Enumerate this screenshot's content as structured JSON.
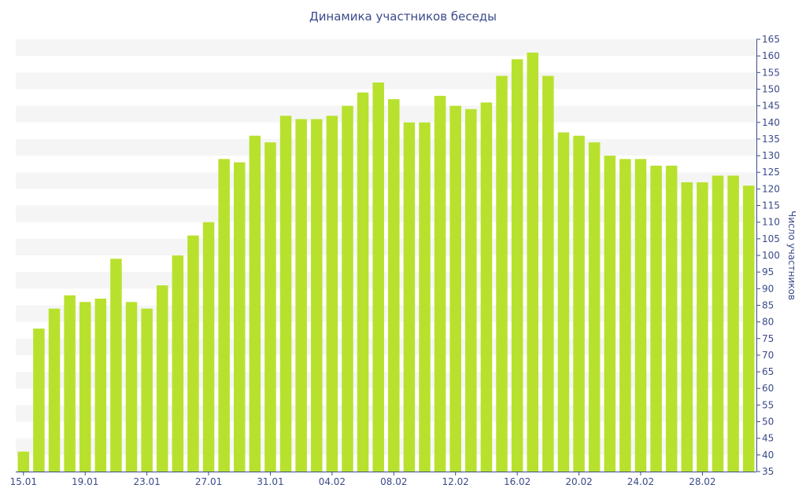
{
  "chart_data": {
    "type": "bar",
    "title": "Динамика участников беседы",
    "ylabel": "Число участников",
    "xlabel": "",
    "ylim": [
      35,
      165
    ],
    "ytick_step": 5,
    "y_axis_side": "right",
    "grid": "horizontal alternating bands",
    "legend": "none",
    "colors": {
      "bar": "#b8e12e",
      "axis": "#3b4a8a",
      "text": "#3b4a8a",
      "band": "#f5f5f5"
    },
    "categories": [
      "15.01",
      "16.01",
      "17.01",
      "18.01",
      "19.01",
      "20.01",
      "21.01",
      "22.01",
      "23.01",
      "24.01",
      "25.01",
      "26.01",
      "27.01",
      "28.01",
      "29.01",
      "30.01",
      "31.01",
      "01.02",
      "02.02",
      "03.02",
      "04.02",
      "05.02",
      "06.02",
      "07.02",
      "08.02",
      "09.02",
      "10.02",
      "11.02",
      "12.02",
      "13.02",
      "14.02",
      "15.02",
      "16.02",
      "17.02",
      "18.02",
      "19.02",
      "20.02",
      "21.02",
      "22.02",
      "23.02",
      "24.02",
      "25.02",
      "26.02",
      "27.02",
      "28.02",
      "01.03",
      "02.03",
      "03.03"
    ],
    "x_tick_labels": [
      "15.01",
      "19.01",
      "23.01",
      "27.01",
      "31.01",
      "04.02",
      "08.02",
      "12.02",
      "16.02",
      "20.02",
      "24.02",
      "28.02"
    ],
    "values": [
      41,
      78,
      84,
      88,
      86,
      87,
      99,
      86,
      84,
      91,
      100,
      106,
      110,
      129,
      128,
      136,
      134,
      142,
      141,
      141,
      142,
      145,
      149,
      152,
      147,
      140,
      140,
      148,
      145,
      144,
      146,
      154,
      159,
      161,
      154,
      137,
      136,
      134,
      130,
      129,
      129,
      127,
      127,
      122,
      122,
      124,
      124,
      121
    ]
  }
}
